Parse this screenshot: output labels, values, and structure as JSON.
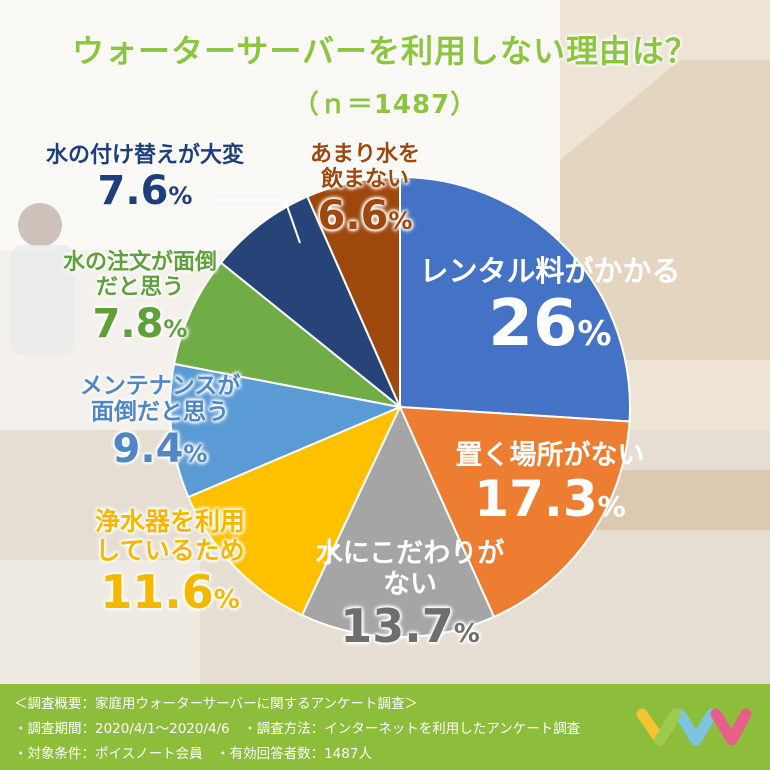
{
  "title": "ウォーターサーバーを利用しない理由は？",
  "subtitle": "（ｎ＝1487）",
  "chart_data": {
    "type": "pie",
    "title": "ウォーターサーバーを利用しない理由は？",
    "unit": "%",
    "slices": [
      {
        "label": "レンタル料がかかる",
        "value": 26,
        "display": "26",
        "color": "#4472C4"
      },
      {
        "label": "置く場所がない",
        "value": 17.3,
        "display": "17.3",
        "color": "#ED7D31"
      },
      {
        "label": "水にこだわりがない",
        "value": 13.7,
        "display": "13.7",
        "color": "#A5A5A5"
      },
      {
        "label": "浄水器を利用しているため",
        "value": 11.6,
        "display": "11.6",
        "color": "#FFC000"
      },
      {
        "label": "メンテナンスが面倒だと思う",
        "value": 9.4,
        "display": "9.4",
        "color": "#5B9BD5"
      },
      {
        "label": "水の注文が面倒だと思う",
        "value": 7.8,
        "display": "7.8",
        "color": "#70AD47"
      },
      {
        "label": "水の付け替えが大変",
        "value": 7.6,
        "display": "7.6",
        "color": "#264478"
      },
      {
        "label": "あまり水を飲まない",
        "value": 6.6,
        "display": "6.6",
        "color": "#9E480E"
      }
    ]
  },
  "labels": {
    "s0_name": "レンタル料がかかる",
    "s1_name": "置く場所がない",
    "s2_line1": "水にこだわりが",
    "s2_line2": "ない",
    "s3_line1": "浄水器を利用",
    "s3_line2": "しているため",
    "s4_line1": "メンテナンスが",
    "s4_line2": "面倒だと思う",
    "s5_line1": "水の注文が面倒",
    "s5_line2": "だと思う",
    "s6_name": "水の付け替えが大変",
    "s7_line1": "あまり水を",
    "s7_line2": "飲まない",
    "percent": "%"
  },
  "footer": {
    "line1": "＜調査概要：家庭用ウォーターサーバーに関するアンケート調査＞",
    "line2": "・調査期間：2020/4/1〜2020/4/6　・調査方法：インターネットを利用したアンケート調査",
    "line3": "・対象条件：ポイスノート会員　・有効回答者数：1487人"
  },
  "colors": {
    "title": "#8CC63F",
    "footer_bg": "#8CBE3C"
  }
}
